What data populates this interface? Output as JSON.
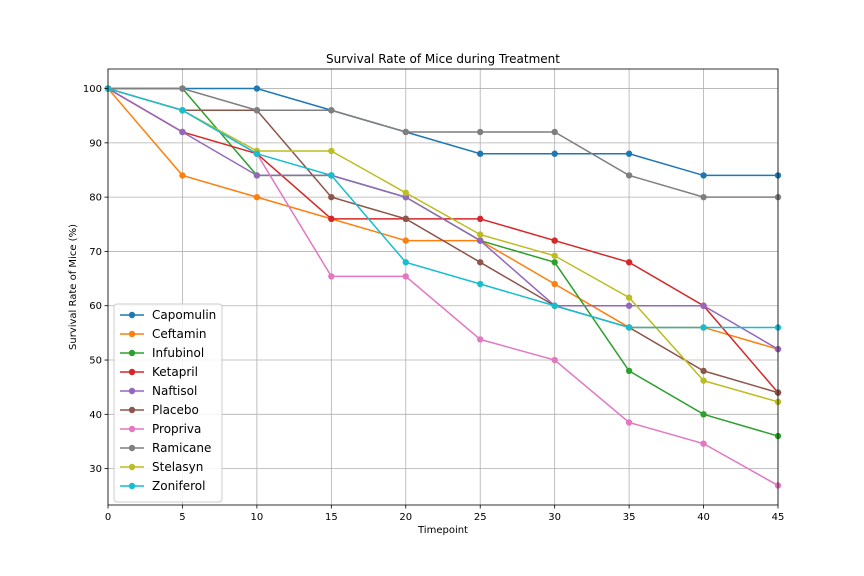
{
  "chart_data": {
    "type": "line",
    "title": "Survival Rate of Mice during Treatment",
    "xlabel": "Timepoint",
    "ylabel": "Survival Rate of Mice (%)",
    "xlim": [
      0,
      45
    ],
    "ylim": [
      23.3,
      103.6
    ],
    "xticks": [
      0,
      5,
      10,
      15,
      20,
      25,
      30,
      35,
      40,
      45
    ],
    "yticks": [
      30,
      40,
      50,
      60,
      70,
      80,
      90,
      100
    ],
    "grid": true,
    "legend_position": "lower-left",
    "x": [
      0,
      5,
      10,
      15,
      20,
      25,
      30,
      35,
      40,
      45
    ],
    "series": [
      {
        "name": "Capomulin",
        "color": "#1f77b4",
        "values": [
          100,
          100,
          100,
          96,
          92,
          88,
          88,
          88,
          84,
          84
        ]
      },
      {
        "name": "Ceftamin",
        "color": "#ff7f0e",
        "values": [
          100,
          84,
          80,
          76,
          72,
          72,
          64,
          56,
          56,
          52
        ]
      },
      {
        "name": "Infubinol",
        "color": "#2ca02c",
        "values": [
          100,
          100,
          84,
          84,
          80,
          72,
          68,
          48,
          40,
          36
        ]
      },
      {
        "name": "Ketapril",
        "color": "#d62728",
        "values": [
          100,
          92,
          88,
          76,
          76,
          76,
          72,
          68,
          60,
          44
        ]
      },
      {
        "name": "Naftisol",
        "color": "#9467bd",
        "values": [
          100,
          92,
          84,
          84,
          80,
          72,
          60,
          60,
          60,
          52
        ]
      },
      {
        "name": "Placebo",
        "color": "#8c564b",
        "values": [
          100,
          96,
          96,
          80,
          76,
          68,
          60,
          56,
          48,
          44
        ]
      },
      {
        "name": "Propriva",
        "color": "#e377c2",
        "values": [
          100,
          96,
          88,
          65.4,
          65.4,
          53.8,
          50,
          38.5,
          34.6,
          26.9
        ]
      },
      {
        "name": "Ramicane",
        "color": "#7f7f7f",
        "values": [
          100,
          100,
          96,
          96,
          92,
          92,
          92,
          84,
          80,
          80
        ]
      },
      {
        "name": "Stelasyn",
        "color": "#bcbd22",
        "values": [
          100,
          96,
          88.5,
          88.5,
          80.8,
          73.1,
          69.2,
          61.5,
          46.2,
          42.3
        ]
      },
      {
        "name": "Zoniferol",
        "color": "#17becf",
        "values": [
          100,
          96,
          88,
          84,
          68,
          64,
          60,
          56,
          56,
          56
        ]
      }
    ]
  }
}
